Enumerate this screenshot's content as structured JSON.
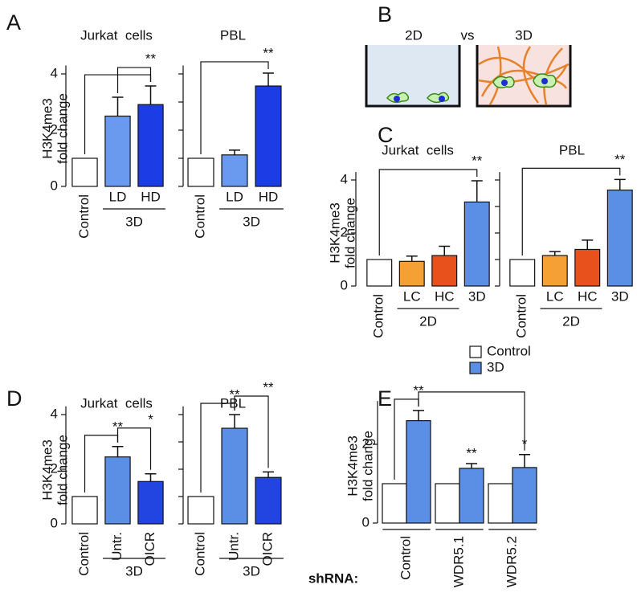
{
  "chart_data": [
    {
      "type": "bar",
      "panel": "A",
      "title": "Jurkat  cells",
      "ylabel": [
        "H3K4me3",
        "fold change"
      ],
      "categories": [
        "Control",
        "LD",
        "HD"
      ],
      "values": [
        1,
        2.5,
        2.91
      ],
      "errors": [
        null,
        0.67,
        0.66
      ],
      "colors": [
        "#ffffff",
        "#6a9af0",
        "#1c3ce6"
      ],
      "ylim": [
        0,
        4.3
      ],
      "yticks": [
        0,
        2,
        4
      ],
      "groups": [
        {
          "label": "3D",
          "from": 1,
          "to": 2
        }
      ],
      "annotations": [
        {
          "from": 0,
          "to": 2
        },
        {
          "text": "**",
          "from": 1,
          "to": 2
        }
      ]
    },
    {
      "type": "bar",
      "title": "PBL",
      "categories": [
        "Control",
        "LD",
        "HD"
      ],
      "values": [
        1,
        1.12,
        3.57
      ],
      "errors": [
        null,
        0.17,
        0.46
      ],
      "colors": [
        "#ffffff",
        "#6a9af0",
        "#1c3ce6"
      ],
      "ylim": [
        0,
        4.3
      ],
      "yticks": [
        0,
        1,
        2,
        3,
        4
      ],
      "tick_labels": false,
      "groups": [
        {
          "label": "3D",
          "from": 1,
          "to": 2
        }
      ],
      "annotations": [
        {
          "text": "**",
          "from": 0,
          "to": 2
        }
      ]
    },
    {
      "type": "bar",
      "panel": "C",
      "title": "Jurkat  cells",
      "ylabel": [
        "H3K4me3",
        "fold change"
      ],
      "categories": [
        "Control",
        "LC",
        "HC",
        "3D"
      ],
      "values": [
        1,
        0.93,
        1.15,
        3.17
      ],
      "errors": [
        null,
        0.2,
        0.35,
        0.8
      ],
      "colors": [
        "#ffffff",
        "#f4a035",
        "#e8501c",
        "#5b8fe6"
      ],
      "ylim": [
        0,
        4.3
      ],
      "yticks": [
        0,
        2,
        4
      ],
      "groups": [
        {
          "label": "2D",
          "from": 1,
          "to": 2
        }
      ],
      "annotations": [
        {
          "text": "**",
          "from": 0,
          "to": 3
        }
      ]
    },
    {
      "type": "bar",
      "title": "PBL",
      "categories": [
        "Control",
        "LC",
        "HC",
        "3D"
      ],
      "values": [
        1,
        1.15,
        1.38,
        3.62
      ],
      "errors": [
        null,
        0.15,
        0.35,
        0.4
      ],
      "colors": [
        "#ffffff",
        "#f4a035",
        "#e8501c",
        "#5b8fe6"
      ],
      "ylim": [
        0,
        4.3
      ],
      "yticks": [
        0,
        1,
        2,
        3,
        4
      ],
      "tick_labels": false,
      "groups": [
        {
          "label": "2D",
          "from": 1,
          "to": 2
        }
      ],
      "annotations": [
        {
          "text": "**",
          "from": 0,
          "to": 3
        }
      ]
    },
    {
      "type": "bar",
      "panel": "D",
      "title": "Jurkat  cells",
      "ylabel": [
        "H3K4me3",
        "fold change"
      ],
      "categories": [
        "Control",
        "Untr.",
        "OICR"
      ],
      "values": [
        1,
        2.45,
        1.55
      ],
      "errors": [
        null,
        0.38,
        0.28
      ],
      "colors": [
        "#ffffff",
        "#5b8fe6",
        "#2244e0"
      ],
      "ylim": [
        0,
        4.3
      ],
      "yticks": [
        0,
        2,
        4
      ],
      "groups": [
        {
          "label": "3D",
          "from": 1,
          "to": 2
        }
      ],
      "annotations": [
        {
          "text": "**",
          "from": 0,
          "to": 1
        },
        {
          "text": "*",
          "from": 1,
          "to": 2
        }
      ]
    },
    {
      "type": "bar",
      "title": "PBL",
      "categories": [
        "Control",
        "Untr.",
        "OICR"
      ],
      "values": [
        1,
        3.5,
        1.7
      ],
      "errors": [
        null,
        0.5,
        0.2
      ],
      "colors": [
        "#ffffff",
        "#5b8fe6",
        "#2244e0"
      ],
      "ylim": [
        0,
        4.3
      ],
      "yticks": [
        0,
        1,
        2,
        3,
        4
      ],
      "tick_labels": false,
      "groups": [
        {
          "label": "3D",
          "from": 1,
          "to": 2
        }
      ],
      "annotations": [
        {
          "text": "**",
          "from": 0,
          "to": 1
        },
        {
          "text": "**",
          "from": 1,
          "to": 2
        }
      ]
    },
    {
      "type": "grouped_bar",
      "panel": "E",
      "ylabel": [
        "H3K4me3",
        "fold change"
      ],
      "xlabel": "shRNA:",
      "categories": [
        "Control",
        "WDR5.1",
        "WDR5.2"
      ],
      "series": [
        {
          "name": "Control",
          "color": "#ffffff",
          "values": [
            1,
            1,
            1
          ],
          "errors": [
            null,
            null,
            null
          ]
        },
        {
          "name": "3D",
          "color": "#5b8fe6",
          "values": [
            2.6,
            1.39,
            1.41
          ],
          "errors": [
            0.26,
            0.12,
            0.33
          ]
        }
      ],
      "ylim": [
        0,
        3.1
      ],
      "yticks": [
        0,
        2
      ],
      "legend": "upper right",
      "annotations": [
        {
          "text": "**",
          "from": 0,
          "to": 1
        },
        {
          "from": 1,
          "to": 5
        },
        {
          "text": "**",
          "from": 3,
          "to": 3
        },
        {
          "text": "*",
          "from": 5,
          "to": 5
        }
      ]
    }
  ],
  "diagram": {
    "panel": "B",
    "labels": [
      "2D",
      "vs",
      "3D"
    ]
  }
}
